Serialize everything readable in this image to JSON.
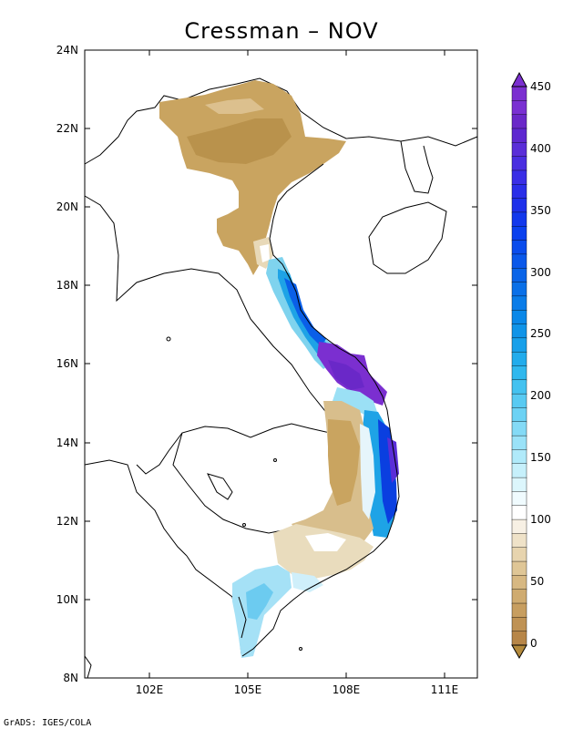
{
  "map": {
    "title": "Cressman – NOV",
    "lat_labels": [
      "24N",
      "22N",
      "20N",
      "18N",
      "16N",
      "14N",
      "12N",
      "10N",
      "8N"
    ],
    "lon_labels": [
      "102E",
      "105E",
      "108E",
      "111E"
    ]
  },
  "colorbar": {
    "labels": [
      "450",
      "400",
      "350",
      "300",
      "250",
      "200",
      "150",
      "100",
      "50",
      "0"
    ],
    "min": 0,
    "max": 450
  },
  "credit": "GrADS: IGES/COLA"
}
